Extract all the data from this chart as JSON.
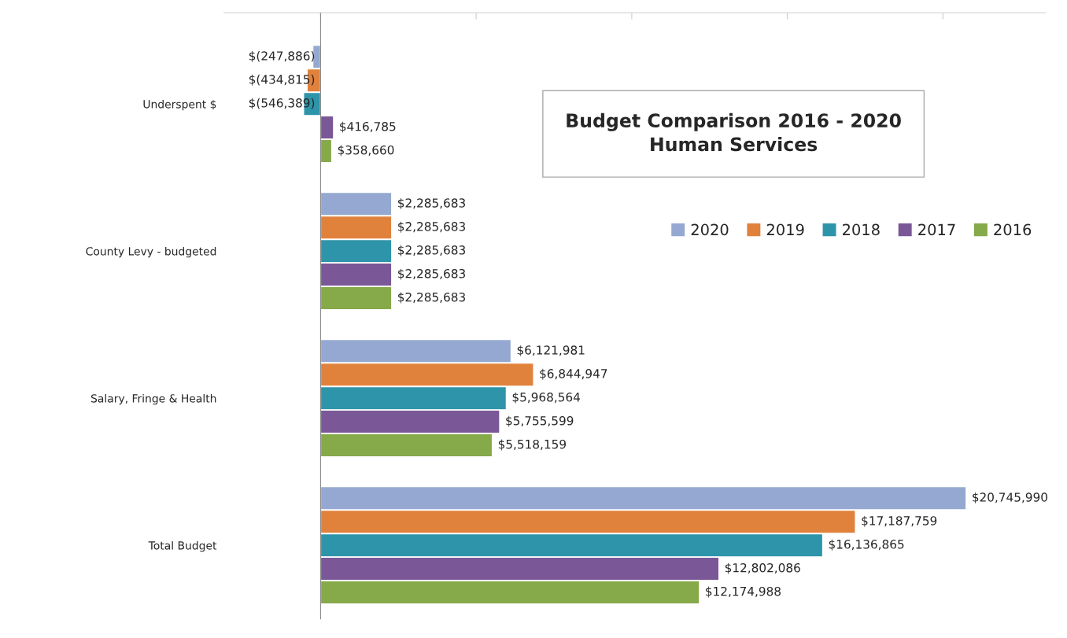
{
  "chart_data": {
    "type": "bar",
    "orientation": "horizontal",
    "title": "Budget Comparison 2016 - 2020",
    "subtitle": "Human Services",
    "categories": [
      "Underspent $",
      "County Levy - budgeted",
      "Salary, Fringe & Health",
      "Total Budget"
    ],
    "series": [
      {
        "name": "2020",
        "color": "#95a8d1",
        "values": [
          -247886,
          2285683,
          6121981,
          20745990
        ],
        "value_labels": [
          "$(247,886)",
          "$2,285,683",
          "$6,121,981",
          "$20,745,990"
        ]
      },
      {
        "name": "2019",
        "color": "#e0823c",
        "values": [
          -434815,
          2285683,
          6844947,
          17187759
        ],
        "value_labels": [
          "$(434,815)",
          "$2,285,683",
          "$6,844,947",
          "$17,187,759"
        ]
      },
      {
        "name": "2018",
        "color": "#2e94a9",
        "values": [
          -546389,
          2285683,
          5968564,
          16136865
        ],
        "value_labels": [
          "$(546,389)",
          "$2,285,683",
          "$5,968,564",
          "$16,136,865"
        ]
      },
      {
        "name": "2017",
        "color": "#7a5796",
        "values": [
          416785,
          2285683,
          5755599,
          12802086
        ],
        "value_labels": [
          "$416,785",
          "$2,285,683",
          "$5,755,599",
          "$12,802,086"
        ]
      },
      {
        "name": "2016",
        "color": "#86a94a",
        "values": [
          358660,
          2285683,
          5518159,
          12174988
        ],
        "value_labels": [
          "$358,660",
          "$2,285,683",
          "$5,518,159",
          "$12,174,988"
        ]
      }
    ],
    "legend": "right",
    "grid": false,
    "tick_labels": "y"
  }
}
